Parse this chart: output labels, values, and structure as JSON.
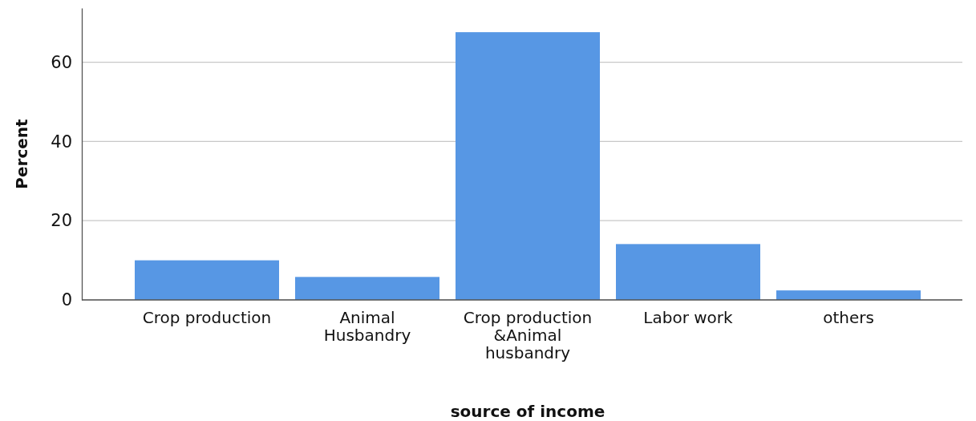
{
  "chart_data": {
    "type": "bar",
    "xlabel": "source of income",
    "ylabel": "Percent",
    "categories": [
      "Crop production",
      "Animal Husbandry",
      "Crop production &Animal husbandry",
      "Labor work",
      "others"
    ],
    "values": [
      10,
      5.8,
      67.6,
      14.1,
      2.4
    ],
    "color": "#5797e4",
    "ylim": [
      0,
      73.7
    ],
    "yticks": [
      0,
      20,
      40,
      60
    ],
    "grid": "y"
  }
}
